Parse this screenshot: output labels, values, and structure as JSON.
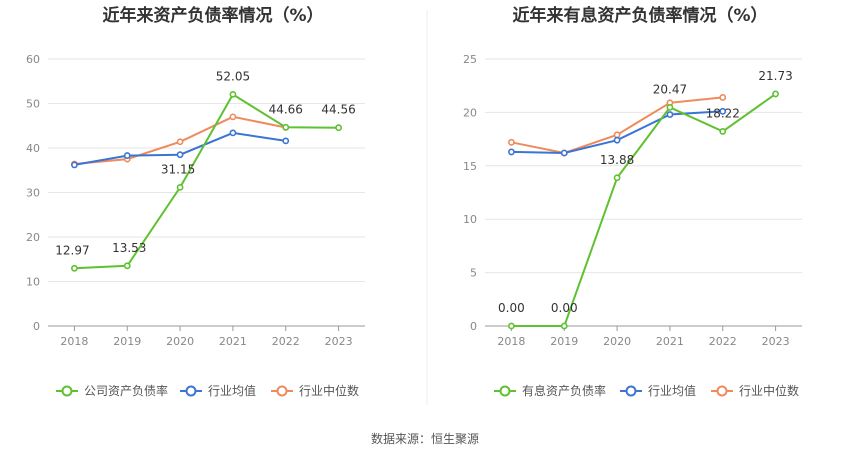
{
  "source_note": "数据来源：恒生聚源",
  "colors": {
    "company": "#5ec12f",
    "industry_avg": "#3a74d4",
    "industry_median": "#ef8a5b",
    "grid": "#e6e6e6",
    "axis": "#999999"
  },
  "chart_data": [
    {
      "type": "line",
      "title": "近年来资产负债率情况（%）",
      "x": [
        "2018",
        "2019",
        "2020",
        "2021",
        "2022",
        "2023"
      ],
      "ylim": [
        0,
        60
      ],
      "yticks": [
        0,
        10,
        20,
        30,
        40,
        50,
        60
      ],
      "grid": true,
      "legend_position": "bottom",
      "series": [
        {
          "name": "公司资产负债率",
          "values": [
            12.97,
            13.53,
            31.15,
            52.05,
            44.66,
            44.56
          ],
          "labels": [
            "12.97",
            "13.53",
            "31.15",
            "52.05",
            "44.66",
            "44.56"
          ]
        },
        {
          "name": "行业均值",
          "values": [
            36.2,
            38.3,
            38.5,
            43.4,
            41.6,
            null
          ]
        },
        {
          "name": "行业中位数",
          "values": [
            36.4,
            37.5,
            41.4,
            47.0,
            44.6,
            null
          ]
        }
      ]
    },
    {
      "type": "line",
      "title": "近年来有息资产负债率情况（%）",
      "x": [
        "2018",
        "2019",
        "2020",
        "2021",
        "2022",
        "2023"
      ],
      "ylim": [
        0,
        25
      ],
      "yticks": [
        0,
        5,
        10,
        15,
        20,
        25
      ],
      "grid": true,
      "legend_position": "bottom",
      "series": [
        {
          "name": "有息资产负债率",
          "values": [
            0.0,
            0.0,
            13.88,
            20.47,
            18.22,
            21.73
          ],
          "labels": [
            "0.00",
            "0.00",
            "13.88",
            "20.47",
            "18.22",
            "21.73"
          ]
        },
        {
          "name": "行业均值",
          "values": [
            16.3,
            16.2,
            17.4,
            19.8,
            20.1,
            null
          ]
        },
        {
          "name": "行业中位数",
          "values": [
            17.2,
            16.2,
            17.9,
            20.9,
            21.4,
            null
          ]
        }
      ]
    }
  ]
}
